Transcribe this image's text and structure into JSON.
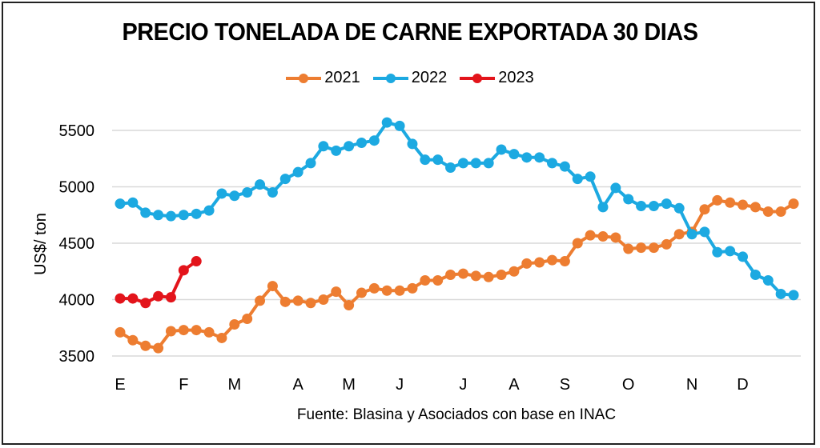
{
  "chart_data": {
    "type": "line",
    "title": "PRECIO TONELADA DE CARNE EXPORTADA 30 DIAS",
    "xlabel": "",
    "ylabel": "US$/ ton",
    "ylim": [
      3500,
      5500
    ],
    "yticks": [
      3500,
      4000,
      4500,
      5000,
      5500
    ],
    "grid": true,
    "legend_position": "top",
    "x_points": 54,
    "month_labels": [
      {
        "label": "E",
        "index": 0
      },
      {
        "label": "F",
        "index": 5
      },
      {
        "label": "M",
        "index": 9
      },
      {
        "label": "A",
        "index": 14
      },
      {
        "label": "M",
        "index": 18
      },
      {
        "label": "J",
        "index": 22
      },
      {
        "label": "J",
        "index": 27
      },
      {
        "label": "A",
        "index": 31
      },
      {
        "label": "S",
        "index": 35
      },
      {
        "label": "O",
        "index": 40
      },
      {
        "label": "N",
        "index": 45
      },
      {
        "label": "D",
        "index": 49
      }
    ],
    "series": [
      {
        "name": "2021",
        "color": "#ED7D31",
        "values": [
          3710,
          3640,
          3590,
          3570,
          3720,
          3730,
          3730,
          3710,
          3660,
          3780,
          3830,
          3990,
          4120,
          3980,
          3990,
          3970,
          4000,
          4070,
          3950,
          4060,
          4100,
          4080,
          4080,
          4100,
          4170,
          4170,
          4220,
          4230,
          4210,
          4200,
          4220,
          4250,
          4320,
          4330,
          4350,
          4340,
          4500,
          4570,
          4560,
          4550,
          4450,
          4460,
          4460,
          4490,
          4580,
          4600,
          4800,
          4880,
          4860,
          4840,
          4820,
          4780,
          4780,
          4850
        ]
      },
      {
        "name": "2022",
        "color": "#1CA9E1",
        "values": [
          4850,
          4860,
          4770,
          4750,
          4740,
          4750,
          4760,
          4790,
          4940,
          4920,
          4950,
          5020,
          4950,
          5070,
          5130,
          5210,
          5360,
          5320,
          5360,
          5390,
          5410,
          5570,
          5540,
          5380,
          5240,
          5240,
          5170,
          5210,
          5210,
          5210,
          5330,
          5290,
          5260,
          5260,
          5210,
          5180,
          5070,
          5090,
          4820,
          4990,
          4890,
          4830,
          4830,
          4850,
          4810,
          4580,
          4600,
          4420,
          4430,
          4380,
          4220,
          4170,
          4050,
          4040
        ]
      },
      {
        "name": "2023",
        "color": "#E3141B",
        "values": [
          4010,
          4010,
          3970,
          4030,
          4020,
          4260,
          4340
        ]
      }
    ]
  },
  "source": "Fuente: Blasina y Asociados con base en INAC"
}
